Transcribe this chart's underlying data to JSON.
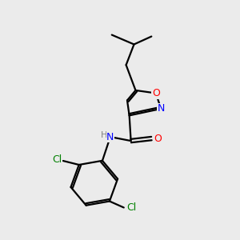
{
  "background_color": "#ebebeb",
  "bond_color": "#000000",
  "atom_colors": {
    "O": "#ff0000",
    "N": "#0000ff",
    "Cl": "#008000",
    "C": "#000000"
  },
  "figsize": [
    3.0,
    3.0
  ],
  "dpi": 100,
  "lw": 1.6,
  "fontsize": 9
}
